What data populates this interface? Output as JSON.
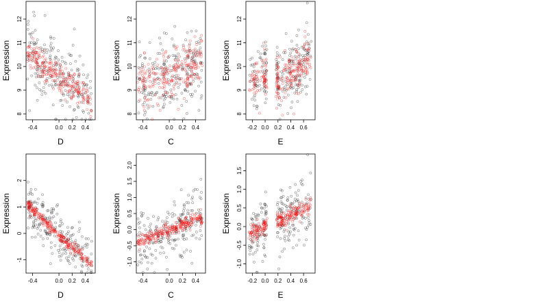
{
  "chart_data": [
    {
      "type": "scatter",
      "xlabel": "D",
      "ylabel": "Expression",
      "xlim": [
        -0.5,
        0.55
      ],
      "ylim": [
        7.75,
        12.75
      ],
      "xticks": [
        -0.4,
        0.0,
        0.2,
        0.4
      ],
      "xtick_labels": [
        "-0.4",
        "0.0",
        "0.2",
        "0.4"
      ],
      "yticks": [
        8,
        9,
        10,
        11,
        12
      ],
      "ytick_labels": [
        "8",
        "9",
        "10",
        "11",
        "12"
      ],
      "series_colors": [
        "#000000",
        "#ff0000"
      ],
      "trend": {
        "x": [
          -0.48,
          0.0,
          0.5
        ],
        "observed": [
          10.6,
          9.6,
          8.5
        ],
        "fitted": [
          10.6,
          9.6,
          8.5
        ]
      },
      "observed_spread": 0.75,
      "fitted_spread": 0.32,
      "points_per_series": 230
    },
    {
      "type": "scatter",
      "xlabel": "C",
      "ylabel": "Expression",
      "xlim": [
        -0.5,
        0.55
      ],
      "ylim": [
        7.75,
        12.75
      ],
      "xticks": [
        -0.4,
        0.0,
        0.2,
        0.4
      ],
      "xtick_labels": [
        "-0.4",
        "0.0",
        "0.2",
        "0.4"
      ],
      "yticks": [
        8,
        9,
        10,
        11,
        12
      ],
      "ytick_labels": [
        "8",
        "9",
        "10",
        "11",
        "12"
      ],
      "series_colors": [
        "#000000",
        "#ff0000"
      ],
      "trend": {
        "x": [
          -0.48,
          0.0,
          0.5
        ],
        "observed": [
          9.2,
          9.6,
          10.2
        ],
        "fitted": [
          9.2,
          9.6,
          10.2
        ]
      },
      "observed_spread": 0.8,
      "fitted_spread": 0.55,
      "points_per_series": 230
    },
    {
      "type": "scatter",
      "xlabel": "E",
      "ylabel": "Expression",
      "xlim": [
        -0.3,
        0.78
      ],
      "ylim": [
        7.75,
        12.75
      ],
      "xticks": [
        -0.2,
        0.0,
        0.2,
        0.4,
        0.6
      ],
      "xtick_labels": [
        "-0.2",
        "0.0",
        "0.2",
        "0.4",
        "0.6"
      ],
      "yticks": [
        8,
        9,
        10,
        11,
        12
      ],
      "ytick_labels": [
        "8",
        "9",
        "10",
        "11",
        "12"
      ],
      "series_colors": [
        "#000000",
        "#ff0000"
      ],
      "trend": {
        "x": [
          -0.25,
          0.0,
          0.2,
          0.5,
          0.72
        ],
        "observed": [
          9.3,
          9.6,
          9.4,
          9.9,
          10.5
        ],
        "fitted": [
          9.5,
          9.5,
          9.3,
          9.9,
          10.5
        ]
      },
      "observed_spread": 0.75,
      "fitted_spread": 0.5,
      "points_per_series": 230
    },
    {
      "type": "scatter",
      "xlabel": "D",
      "ylabel": "Expression",
      "xlim": [
        -0.5,
        0.55
      ],
      "ylim": [
        -1.5,
        3.0
      ],
      "xticks": [
        -0.4,
        0.0,
        0.2,
        0.4
      ],
      "xtick_labels": [
        "-0.4",
        "0.0",
        "0.2",
        "0.4"
      ],
      "yticks": [
        -1,
        0,
        1,
        2
      ],
      "ytick_labels": [
        "-1",
        "0",
        "1",
        "2"
      ],
      "series_colors": [
        "#000000",
        "#ff0000"
      ],
      "trend": {
        "x": [
          -0.48,
          0.0,
          0.5
        ],
        "observed": [
          1.1,
          -0.1,
          -1.15
        ],
        "fitted": [
          1.1,
          -0.1,
          -1.15
        ]
      },
      "observed_spread": 0.5,
      "fitted_spread": 0.1,
      "points_per_series": 230
    },
    {
      "type": "scatter",
      "xlabel": "C",
      "ylabel": "Expression",
      "xlim": [
        -0.5,
        0.55
      ],
      "ylim": [
        -1.35,
        2.35
      ],
      "xticks": [
        -0.4,
        0.0,
        0.2,
        0.4
      ],
      "xtick_labels": [
        "-0.4",
        "0.0",
        "0.2",
        "0.4"
      ],
      "yticks": [
        -1.0,
        -0.5,
        0.0,
        0.5,
        1.0,
        1.5,
        2.0
      ],
      "ytick_labels": [
        "-1.0",
        "-0.5",
        "0.0",
        "0.5",
        "1.0",
        "1.5",
        "2.0"
      ],
      "series_colors": [
        "#000000",
        "#ff0000"
      ],
      "trend": {
        "x": [
          -0.48,
          0.0,
          0.5
        ],
        "observed": [
          -0.4,
          0.0,
          0.35
        ],
        "fitted": [
          -0.4,
          0.0,
          0.38
        ]
      },
      "observed_spread": 0.45,
      "fitted_spread": 0.1,
      "points_per_series": 230
    },
    {
      "type": "scatter",
      "xlabel": "E",
      "ylabel": "Expression",
      "xlim": [
        -0.3,
        0.78
      ],
      "ylim": [
        -1.25,
        1.95
      ],
      "xticks": [
        -0.2,
        0.0,
        0.2,
        0.4,
        0.6
      ],
      "xtick_labels": [
        "-0.2",
        "0.0",
        "0.2",
        "0.4",
        "0.6"
      ],
      "yticks": [
        -1.0,
        -0.5,
        0.0,
        0.5,
        1.0,
        1.5
      ],
      "ytick_labels": [
        "-1.0",
        "-0.5",
        "0.0",
        "0.5",
        "1.0",
        "1.5"
      ],
      "series_colors": [
        "#000000",
        "#ff0000"
      ],
      "trend": {
        "x": [
          -0.25,
          0.0,
          0.2,
          0.5,
          0.72
        ],
        "observed": [
          -0.3,
          0.0,
          0.15,
          0.35,
          0.6
        ],
        "fitted": [
          -0.2,
          0.05,
          0.15,
          0.35,
          0.6
        ]
      },
      "observed_spread": 0.45,
      "fitted_spread": 0.12,
      "points_per_series": 230
    }
  ]
}
